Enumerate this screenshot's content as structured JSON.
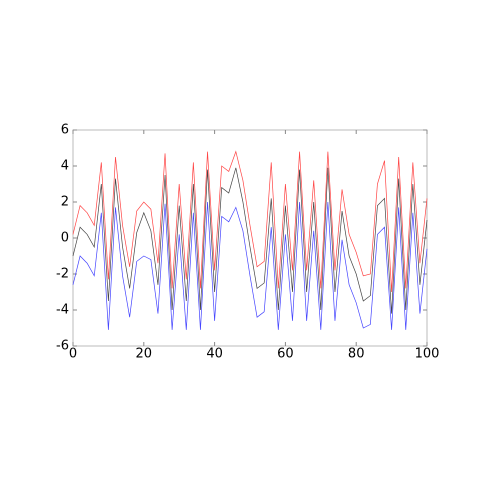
{
  "chart_data": {
    "type": "line",
    "x": [
      0,
      2,
      4,
      6,
      8,
      10,
      12,
      14,
      16,
      18,
      20,
      22,
      24,
      26,
      28,
      30,
      32,
      34,
      36,
      38,
      40,
      42,
      44,
      46,
      48,
      50,
      52,
      54,
      56,
      58,
      60,
      62,
      64,
      66,
      68,
      70,
      72,
      74,
      76,
      78,
      80,
      82,
      84,
      86,
      88,
      90,
      92,
      94,
      96,
      98,
      100
    ],
    "series": [
      {
        "color": "#444444",
        "values": [
          -1.0,
          0.6,
          0.2,
          -0.5,
          3.0,
          -3.5,
          3.3,
          -0.5,
          -2.8,
          0.3,
          1.4,
          0.4,
          -2.6,
          3.5,
          -4.0,
          1.8,
          -3.5,
          3.0,
          -4.0,
          3.8,
          -3.0,
          2.8,
          2.5,
          3.9,
          2.0,
          -0.5,
          -2.8,
          -2.5,
          2.2,
          -4.0,
          1.8,
          -3.0,
          3.8,
          -3.0,
          2.0,
          -4.0,
          3.9,
          -3.0,
          1.5,
          -1.0,
          -2.0,
          -3.5,
          -3.2,
          1.8,
          2.2,
          -4.2,
          3.3,
          -4.0,
          3.0,
          -2.6,
          1.0
        ]
      },
      {
        "color": "#ff4444",
        "values": [
          0.2,
          1.8,
          1.4,
          0.7,
          4.2,
          -2.3,
          4.5,
          0.7,
          -1.6,
          1.5,
          2.0,
          1.6,
          -1.4,
          4.7,
          -2.8,
          3.0,
          -2.3,
          4.2,
          -2.8,
          4.8,
          -1.8,
          4.0,
          3.7,
          4.8,
          3.2,
          0.7,
          -1.6,
          -1.3,
          4.2,
          -2.8,
          3.0,
          -1.8,
          4.8,
          -1.8,
          3.2,
          -2.8,
          4.8,
          -1.8,
          2.7,
          0.2,
          -0.8,
          -2.1,
          -2.0,
          3.0,
          4.3,
          -3.0,
          4.5,
          -2.8,
          4.2,
          -1.4,
          2.2
        ]
      },
      {
        "color": "#4444ff",
        "values": [
          -2.6,
          -1.0,
          -1.4,
          -2.1,
          1.4,
          -5.1,
          1.7,
          -2.1,
          -4.4,
          -1.3,
          -1.0,
          -1.2,
          -4.2,
          1.9,
          -5.1,
          0.2,
          -5.1,
          1.4,
          -5.1,
          2.0,
          -4.6,
          1.2,
          0.9,
          1.7,
          0.4,
          -2.1,
          -4.4,
          -4.1,
          0.6,
          -5.1,
          0.2,
          -4.6,
          2.0,
          -4.6,
          0.4,
          -5.1,
          2.0,
          -4.6,
          -0.1,
          -2.6,
          -3.6,
          -5.0,
          -4.8,
          0.2,
          0.6,
          -5.1,
          1.7,
          -5.1,
          1.4,
          -4.2,
          -0.6
        ]
      }
    ],
    "xlim": [
      0,
      100
    ],
    "xticks": [
      0,
      20,
      40,
      60,
      80,
      100
    ],
    "ylim": [
      -6,
      6
    ],
    "yticks": [
      -6,
      -4,
      -2,
      0,
      2,
      4,
      6
    ]
  }
}
